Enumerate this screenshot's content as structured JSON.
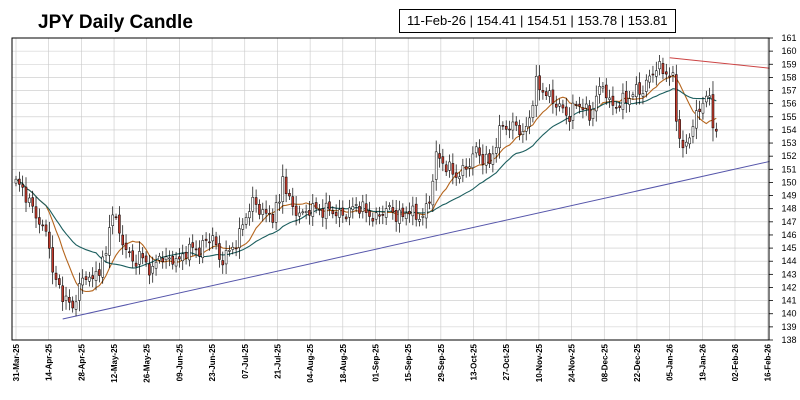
{
  "chart_data": {
    "type": "candlestick",
    "title": "JPY Daily Candle",
    "ohlc_readout": {
      "date": "11-Feb-26",
      "open": "154.41",
      "high": "154.51",
      "low": "153.78",
      "close": "153.81",
      "separator": " | "
    },
    "x_ticks": [
      "31-Mar-25",
      "14-Apr-25",
      "28-Apr-25",
      "12-May-25",
      "26-May-25",
      "09-Jun-25",
      "23-Jun-25",
      "07-Jul-25",
      "21-Jul-25",
      "04-Aug-25",
      "18-Aug-25",
      "01-Sep-25",
      "15-Sep-25",
      "29-Sep-25",
      "13-Oct-25",
      "27-Oct-25",
      "10-Nov-25",
      "24-Nov-25",
      "08-Dec-25",
      "22-Dec-25",
      "05-Jan-26",
      "19-Jan-26",
      "02-Feb-26",
      "16-Feb-26"
    ],
    "y_ticks": [
      138,
      139,
      140,
      141,
      142,
      143,
      144,
      145,
      146,
      147,
      148,
      149,
      150,
      151,
      152,
      153,
      154,
      155,
      156,
      157,
      158,
      159,
      160,
      161
    ],
    "ylim": [
      138,
      161
    ],
    "grid": true,
    "series_anchor_closes": [
      [
        0,
        150.0
      ],
      [
        2,
        149.5
      ],
      [
        5,
        148.0
      ],
      [
        8,
        146.5
      ],
      [
        10,
        145.5
      ],
      [
        11,
        143.0
      ],
      [
        13,
        142.0
      ],
      [
        15,
        141.0
      ],
      [
        17,
        140.5
      ],
      [
        19,
        142.0
      ],
      [
        21,
        143.0
      ],
      [
        23,
        142.5
      ],
      [
        25,
        143.5
      ],
      [
        27,
        144.5
      ],
      [
        28,
        146.5
      ],
      [
        29,
        148.0
      ],
      [
        31,
        146.0
      ],
      [
        33,
        145.0
      ],
      [
        35,
        143.8
      ],
      [
        37,
        144.5
      ],
      [
        39,
        143.8
      ],
      [
        41,
        143.2
      ],
      [
        43,
        144.5
      ],
      [
        45,
        144.0
      ],
      [
        47,
        144.2
      ],
      [
        49,
        144.0
      ],
      [
        51,
        144.8
      ],
      [
        53,
        145.0
      ],
      [
        55,
        144.8
      ],
      [
        57,
        145.5
      ],
      [
        59,
        146.0
      ],
      [
        61,
        144.0
      ],
      [
        63,
        144.5
      ],
      [
        65,
        145.0
      ],
      [
        67,
        146.0
      ],
      [
        69,
        147.5
      ],
      [
        71,
        148.5
      ],
      [
        73,
        148.0
      ],
      [
        75,
        147.5
      ],
      [
        77,
        147.5
      ],
      [
        79,
        148.5
      ],
      [
        80,
        150.5
      ],
      [
        82,
        148.5
      ],
      [
        84,
        147.8
      ],
      [
        86,
        147.5
      ],
      [
        88,
        148.0
      ],
      [
        90,
        148.0
      ],
      [
        92,
        147.8
      ],
      [
        94,
        148.0
      ],
      [
        96,
        147.6
      ],
      [
        98,
        147.5
      ],
      [
        100,
        147.8
      ],
      [
        102,
        148.3
      ],
      [
        104,
        148.0
      ],
      [
        106,
        147.5
      ],
      [
        108,
        147.2
      ],
      [
        110,
        147.8
      ],
      [
        112,
        148.0
      ],
      [
        114,
        147.5
      ],
      [
        116,
        147.4
      ],
      [
        118,
        148.0
      ],
      [
        120,
        147.3
      ],
      [
        122,
        147.5
      ],
      [
        124,
        148.5
      ],
      [
        125,
        150.5
      ],
      [
        126,
        152.0
      ],
      [
        128,
        151.5
      ],
      [
        130,
        151.0
      ],
      [
        132,
        150.5
      ],
      [
        134,
        150.8
      ],
      [
        136,
        151.5
      ],
      [
        138,
        152.5
      ],
      [
        140,
        151.8
      ],
      [
        142,
        151.5
      ],
      [
        144,
        153.0
      ],
      [
        146,
        154.5
      ],
      [
        148,
        154.0
      ],
      [
        150,
        154.5
      ],
      [
        152,
        153.5
      ],
      [
        154,
        155.0
      ],
      [
        156,
        157.5
      ],
      [
        158,
        157.0
      ],
      [
        160,
        156.5
      ],
      [
        162,
        156.0
      ],
      [
        164,
        155.5
      ],
      [
        166,
        155.0
      ],
      [
        168,
        156.0
      ],
      [
        170,
        155.8
      ],
      [
        172,
        155.0
      ],
      [
        174,
        156.5
      ],
      [
        176,
        157.5
      ],
      [
        178,
        156.0
      ],
      [
        180,
        155.8
      ],
      [
        182,
        156.2
      ],
      [
        184,
        156.5
      ],
      [
        186,
        157.0
      ],
      [
        188,
        157.0
      ],
      [
        190,
        158.0
      ],
      [
        192,
        158.8
      ],
      [
        194,
        158.5
      ],
      [
        196,
        158.2
      ],
      [
        197,
        157.8
      ],
      [
        198,
        155.0
      ],
      [
        199,
        153.5
      ],
      [
        200,
        152.5
      ],
      [
        201,
        152.8
      ],
      [
        203,
        154.5
      ],
      [
        205,
        155.5
      ],
      [
        207,
        156.8
      ],
      [
        208,
        156.0
      ],
      [
        209,
        154.5
      ],
      [
        210,
        154.0
      ]
    ],
    "trend_lines": [
      {
        "color": "#cc4444",
        "from": [
          196,
          159.5
        ],
        "to": [
          226,
          158.7
        ]
      },
      {
        "color": "#5555aa",
        "from": [
          14,
          139.6
        ],
        "to": [
          226,
          151.6
        ]
      }
    ],
    "moving_averages": [
      {
        "color": "#b5651d",
        "period": 10
      },
      {
        "color": "#1b5e5e",
        "period": 25
      }
    ],
    "colors": {
      "up_candle": "#ffffff",
      "down_candle": "#c0392b",
      "candle_outline": "#000000",
      "grid": "#c8c8c8"
    }
  }
}
